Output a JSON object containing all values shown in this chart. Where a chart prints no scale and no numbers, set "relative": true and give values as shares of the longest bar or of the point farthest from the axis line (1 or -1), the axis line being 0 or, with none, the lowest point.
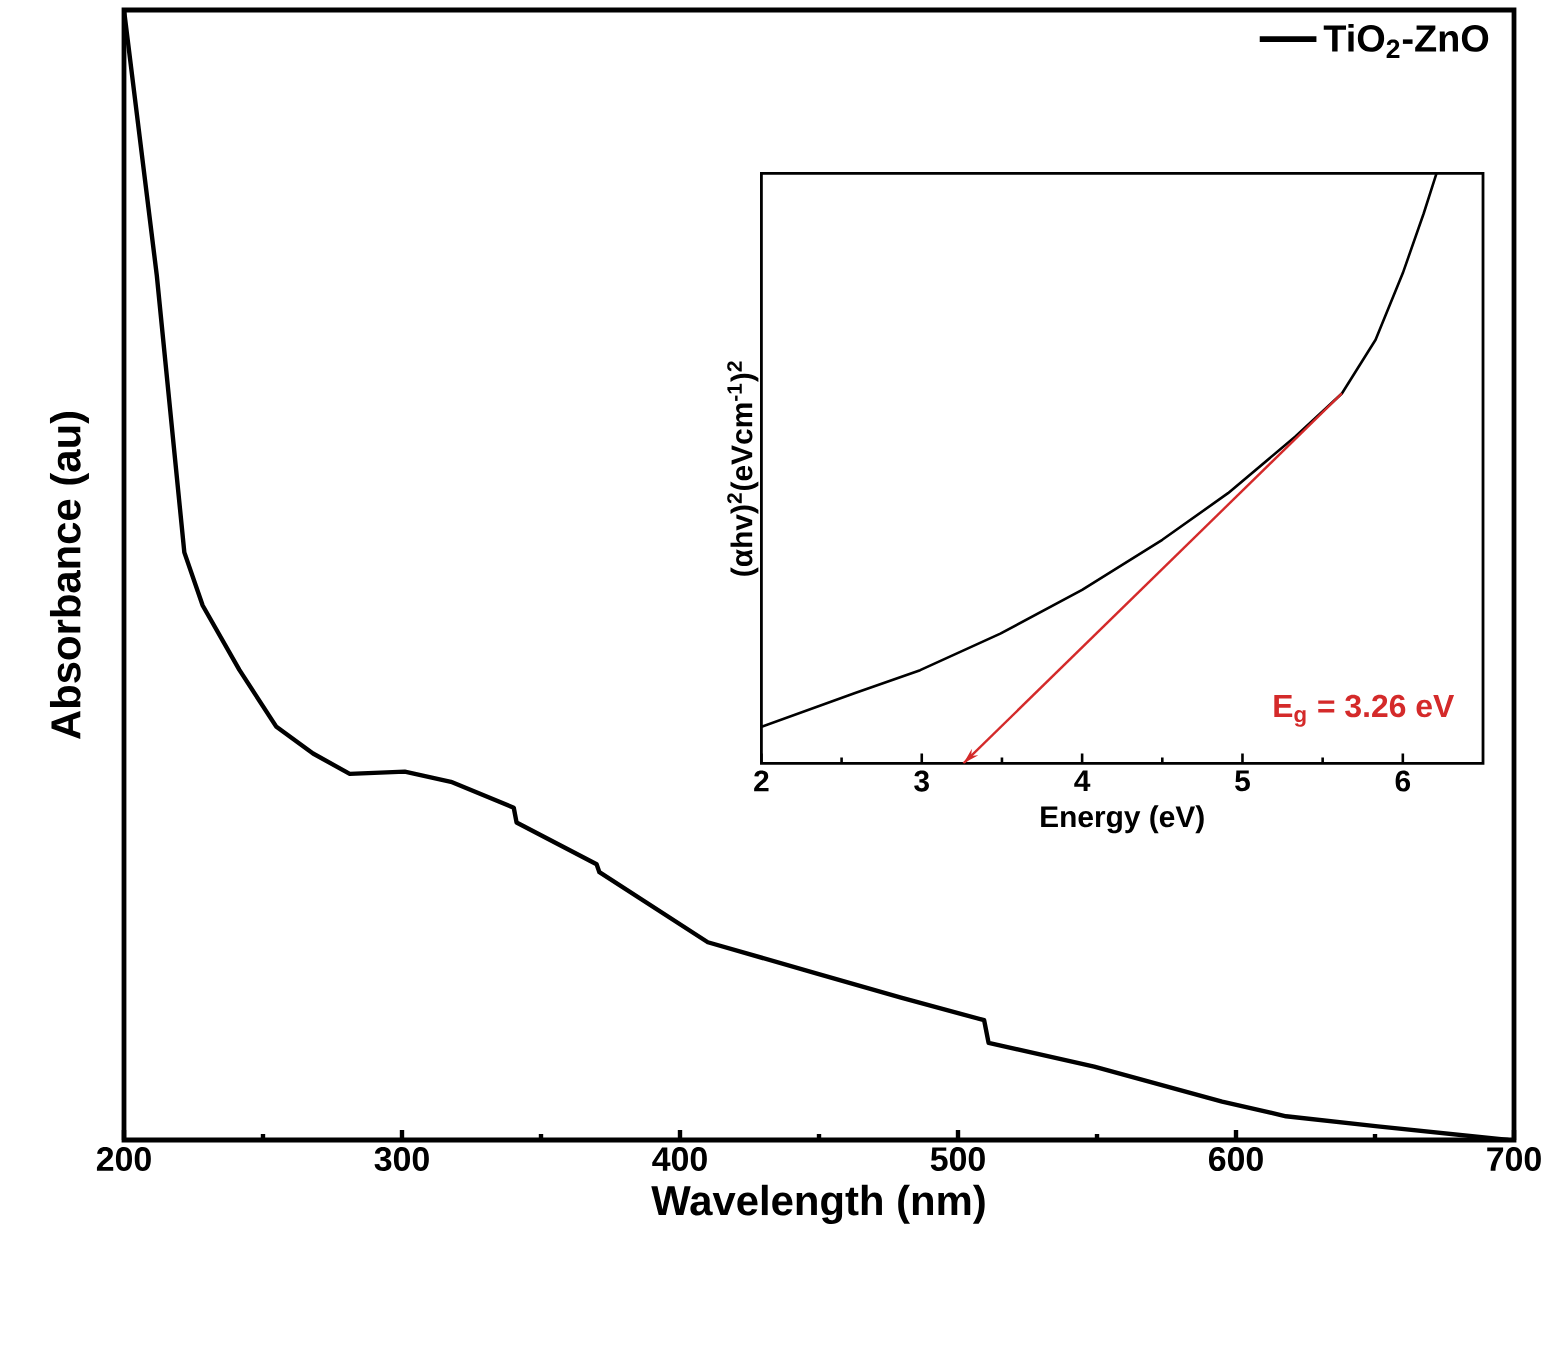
{
  "chart_data": [
    {
      "type": "line",
      "xlabel": "Wavelength (nm)",
      "ylabel": "Absorbance (au)",
      "relative": true,
      "xlim": [
        200,
        700
      ],
      "xticks": [
        200,
        300,
        400,
        500,
        600,
        700
      ],
      "legend": "top right",
      "series": [
        {
          "name": "TiO$_{2}$-ZnO",
          "color": "#000000",
          "x": [
            200,
            211.8,
            221.7,
            228.3,
            241.5,
            254.7,
            268,
            281.2,
            301,
            317.6,
            340.2,
            341.2,
            370,
            371,
            410,
            449.6,
            479.5,
            509.4,
            511,
            549,
            595,
            618,
            651,
            698
          ],
          "values": [
            1.0,
            0.765,
            0.52,
            0.473,
            0.416,
            0.366,
            0.342,
            0.324,
            0.326,
            0.317,
            0.294,
            0.281,
            0.244,
            0.237,
            0.175,
            0.147,
            0.126,
            0.106,
            0.086,
            0.065,
            0.034,
            0.021,
            0.012,
            0.0
          ]
        }
      ]
    },
    {
      "type": "line",
      "xlabel": "Energy (eV)",
      "ylabel": "(αhv)$^{2}$(eVcm$^{-1}$)$^{2}$",
      "relative": true,
      "xlim": [
        2,
        6.5
      ],
      "xticks": [
        2,
        3,
        4,
        5,
        6
      ],
      "annotations": [
        "E$_{g}$ = 3.26 eV"
      ],
      "series": [
        {
          "color": "#000000",
          "x": [
            2.0,
            2.58,
            2.99,
            3.49,
            4.0,
            4.5,
            4.91,
            5.33,
            5.62,
            5.83,
            6.0,
            6.13,
            6.21
          ],
          "values": [
            0.062,
            0.119,
            0.158,
            0.22,
            0.294,
            0.379,
            0.458,
            0.554,
            0.627,
            0.718,
            0.831,
            0.932,
            1.0
          ]
        },
        {
          "type": "line",
          "color": "#d42a2a",
          "x": [
            3.26,
            5.62
          ],
          "values": [
            0.0,
            0.627
          ]
        }
      ]
    }
  ]
}
